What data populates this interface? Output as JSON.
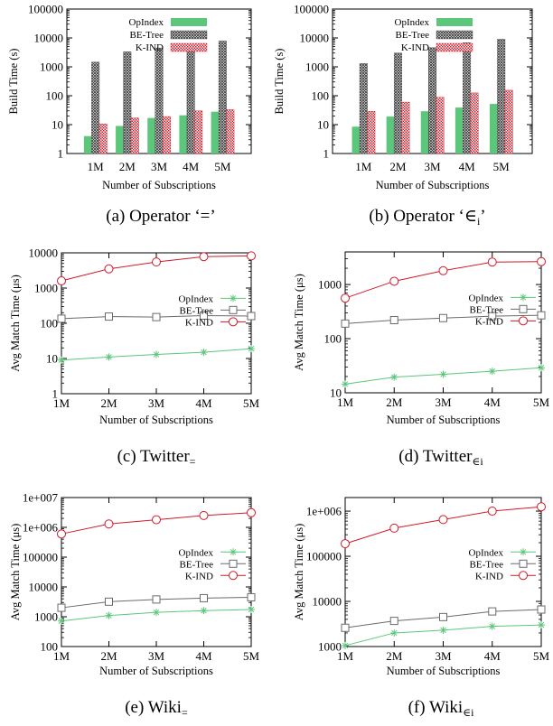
{
  "colors": {
    "opindex": "#5cc77a",
    "betree": "#6b6b6b",
    "kind": "#d11a2a",
    "axis": "#000000"
  },
  "charts": [
    {
      "chart_data": {
        "type": "bar",
        "categories": [
          "1M",
          "2M",
          "3M",
          "4M",
          "5M"
        ],
        "series": [
          {
            "name": "OpIndex",
            "values": [
              4,
              9,
              17,
              21,
              28
            ]
          },
          {
            "name": "BE-Tree",
            "values": [
              1450,
              3300,
              4500,
              5800,
              7800
            ]
          },
          {
            "name": "K-IND",
            "values": [
              10.5,
              17,
              19,
              30,
              33
            ]
          }
        ],
        "xlabel": "Number of Subscriptions",
        "ylabel": "Build Time (s)",
        "yscale": "log",
        "ylim": [
          1,
          100000
        ],
        "yticks": [
          "1",
          "10",
          "100",
          "1000",
          "10000",
          "100000"
        ],
        "legend": "top-left"
      },
      "caption": {
        "text": "(a) Operator ‘=’",
        "sub": ""
      }
    },
    {
      "chart_data": {
        "type": "bar",
        "categories": [
          "1M",
          "2M",
          "3M",
          "4M",
          "5M"
        ],
        "series": [
          {
            "name": "OpIndex",
            "values": [
              8.5,
              19,
              29,
              39,
              52
            ]
          },
          {
            "name": "BE-Tree",
            "values": [
              1300,
              3000,
              4600,
              6800,
              9000
            ]
          },
          {
            "name": "K-IND",
            "values": [
              29,
              60,
              88,
              125,
              155
            ]
          }
        ],
        "xlabel": "Number of Subscriptions",
        "ylabel": "Build Time (s)",
        "yscale": "log",
        "ylim": [
          1,
          100000
        ],
        "yticks": [
          "1",
          "10",
          "100",
          "1000",
          "10000",
          "100000"
        ],
        "legend": "top-left"
      },
      "caption": {
        "text": "(b) Operator ‘∈",
        "sub": "i",
        "after": "’"
      }
    },
    {
      "chart_data": {
        "type": "line",
        "x": [
          "1M",
          "2M",
          "3M",
          "4M",
          "5M"
        ],
        "series": [
          {
            "name": "OpIndex",
            "values": [
              9,
              11,
              13,
              15,
              19
            ]
          },
          {
            "name": "BE-Tree",
            "values": [
              135,
              155,
              150,
              165,
              160
            ]
          },
          {
            "name": "K-IND",
            "values": [
              1600,
              3500,
              5500,
              7800,
              8200
            ]
          }
        ],
        "xlabel": "Number of Subscriptions",
        "ylabel": "Avg Match Time (μs)",
        "yscale": "log",
        "ylim": [
          1,
          10000
        ],
        "yticks": [
          "1",
          "10",
          "100",
          "1000",
          "10000"
        ],
        "legend": "right"
      },
      "caption": {
        "text": "(c) Twitter",
        "sub": "="
      }
    },
    {
      "chart_data": {
        "type": "line",
        "x": [
          "1M",
          "2M",
          "3M",
          "4M",
          "5M"
        ],
        "series": [
          {
            "name": "OpIndex",
            "values": [
              14.5,
              19.5,
              22,
              25,
              29
            ]
          },
          {
            "name": "BE-Tree",
            "values": [
              190,
              220,
              240,
              260,
              270
            ]
          },
          {
            "name": "K-IND",
            "values": [
              560,
              1150,
              1800,
              2600,
              2650
            ]
          }
        ],
        "xlabel": "Number of Subscriptions",
        "ylabel": "Avg Match Time (μs)",
        "yscale": "log",
        "ylim": [
          10,
          4000
        ],
        "yticks": [
          "10",
          "100",
          "1000"
        ],
        "legend": "right"
      },
      "caption": {
        "text": "(d) Twitter",
        "sub": "∈i"
      }
    },
    {
      "chart_data": {
        "type": "line",
        "x": [
          "1M",
          "2M",
          "3M",
          "4M",
          "5M"
        ],
        "series": [
          {
            "name": "OpIndex",
            "values": [
              720,
              1100,
              1400,
              1600,
              1750
            ]
          },
          {
            "name": "BE-Tree",
            "values": [
              2000,
              3200,
              3800,
              4200,
              4500
            ]
          },
          {
            "name": "K-IND",
            "values": [
              600000,
              1300000,
              1800000,
              2500000,
              3100000
            ]
          }
        ],
        "xlabel": "Number of Subscriptions",
        "ylabel": "Avg Match Time (μs)",
        "yscale": "log",
        "ylim": [
          100,
          10000000
        ],
        "yticks": [
          "100",
          "1000",
          "10000",
          "100000",
          "1e+006",
          "1e+007"
        ],
        "legend": "right"
      },
      "caption": {
        "text": "(e) Wiki",
        "sub": "="
      }
    },
    {
      "chart_data": {
        "type": "line",
        "x": [
          "1M",
          "2M",
          "3M",
          "4M",
          "5M"
        ],
        "series": [
          {
            "name": "OpIndex",
            "values": [
              1050,
              2000,
              2300,
              2800,
              3000
            ]
          },
          {
            "name": "BE-Tree",
            "values": [
              2600,
              3700,
              4500,
              6000,
              6600
            ]
          },
          {
            "name": "K-IND",
            "values": [
              190000,
              420000,
              650000,
              1000000,
              1250000
            ]
          }
        ],
        "xlabel": "Number of Subscriptions",
        "ylabel": "Avg Match Time (μs)",
        "yscale": "log",
        "ylim": [
          1000,
          2000000
        ],
        "yticks": [
          "1000",
          "10000",
          "100000",
          "1e+006"
        ],
        "legend": "right"
      },
      "caption": {
        "text": "(f) Wiki",
        "sub": "∈i"
      }
    }
  ]
}
